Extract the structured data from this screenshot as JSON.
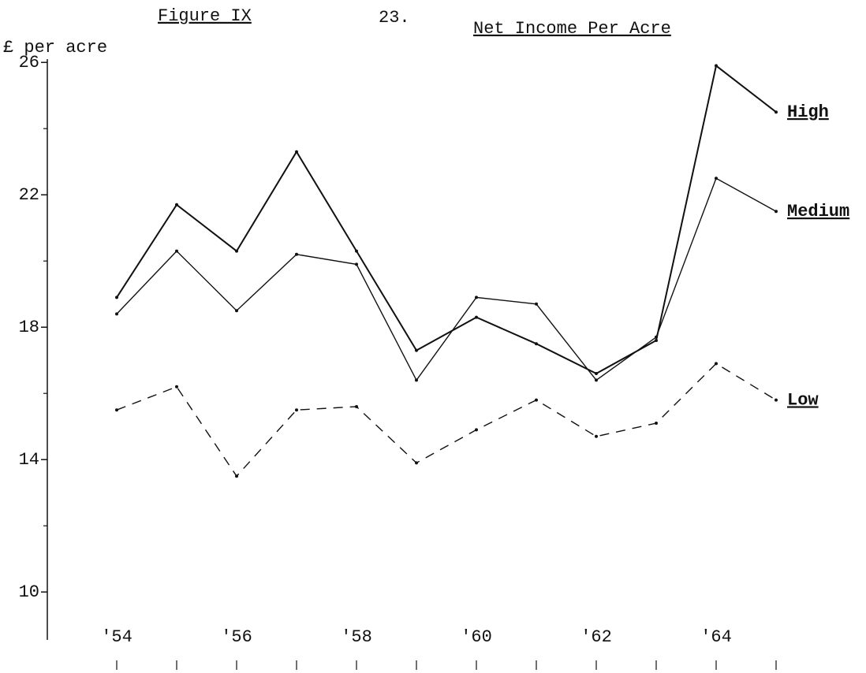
{
  "chart_data": {
    "type": "line",
    "figure_label": "Figure IX",
    "page_number": "23.",
    "title": "Net Income Per Acre",
    "y_label": "£ per acre",
    "categories": [
      "'54",
      null,
      "'56",
      null,
      "'58",
      null,
      "'60",
      null,
      "'62",
      null,
      "'64",
      null
    ],
    "ylim": [
      8.6,
      26.1
    ],
    "yticks": [
      10,
      14,
      18,
      22,
      26
    ],
    "yminorticks": [
      12,
      16,
      20,
      24
    ],
    "grid": false,
    "series": [
      {
        "name": "High",
        "color": "#111111",
        "style": "solid",
        "values": [
          18.9,
          21.7,
          20.3,
          23.3,
          20.3,
          17.3,
          18.3,
          17.5,
          16.6,
          17.6,
          25.9,
          24.5
        ]
      },
      {
        "name": "Medium",
        "color": "#111111",
        "style": "dashdot",
        "values": [
          18.4,
          20.3,
          18.5,
          20.2,
          19.9,
          16.4,
          18.9,
          18.7,
          16.4,
          17.7,
          22.5,
          21.5
        ]
      },
      {
        "name": "Low",
        "color": "#111111",
        "style": "dashed",
        "values": [
          15.5,
          16.2,
          13.5,
          15.5,
          15.6,
          13.9,
          14.9,
          15.8,
          14.7,
          15.1,
          16.9,
          15.8
        ]
      }
    ]
  }
}
